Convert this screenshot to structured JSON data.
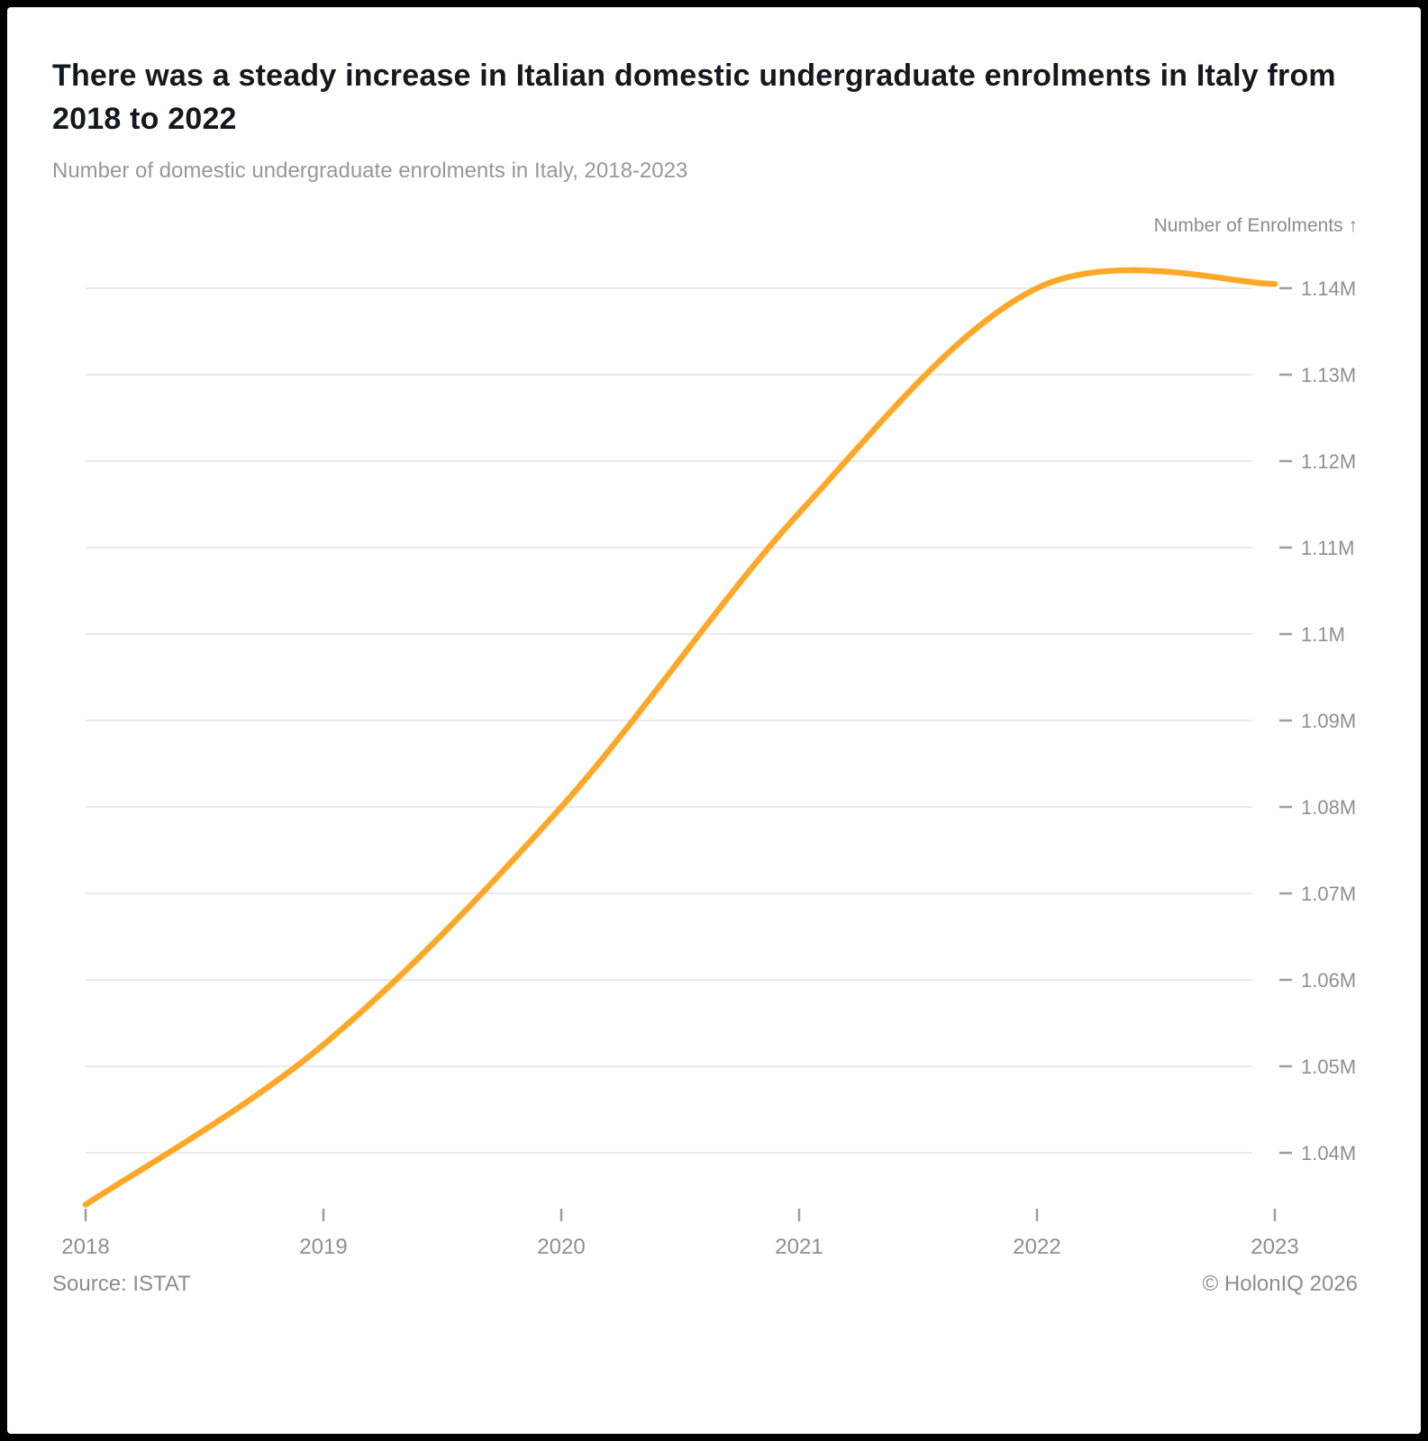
{
  "header": {
    "title": "There was a steady increase in Italian domestic undergraduate enrolments in Italy from 2018 to 2022",
    "subtitle": "Number of domestic undergraduate enrolments in Italy, 2018-2023"
  },
  "footer": {
    "source": "Source: ISTAT",
    "copyright": "© HolonIQ 2026"
  },
  "colors": {
    "line": "#FFA726",
    "gridline": "#eaeaea",
    "tick": "#9e9e9e",
    "tick_label": "#8d8f92",
    "title_text": "#15181e",
    "subtitle_text": "#96989b"
  },
  "chart_data": {
    "type": "line",
    "title": "Number of domestic undergraduate enrolments in Italy, 2018-2023",
    "x": [
      2018,
      2019,
      2020,
      2021,
      2022,
      2023
    ],
    "x_tick_labels": [
      "2018",
      "2019",
      "2020",
      "2021",
      "2022",
      "2023"
    ],
    "series": [
      {
        "name": "Domestic undergraduate enrolments",
        "values": [
          1034000,
          1052500,
          1080000,
          1114000,
          1140000,
          1140500
        ]
      }
    ],
    "ylabel": "Number of Enrolments ↑",
    "xlabel": "",
    "y_tick_values": [
      1040000,
      1050000,
      1060000,
      1070000,
      1080000,
      1090000,
      1100000,
      1110000,
      1120000,
      1130000,
      1140000
    ],
    "y_tick_labels": [
      "1.04M",
      "1.05M",
      "1.06M",
      "1.07M",
      "1.08M",
      "1.09M",
      "1.1M",
      "1.11M",
      "1.12M",
      "1.13M",
      "1.14M"
    ],
    "ylim": [
      1033000,
      1143000
    ],
    "grid": true,
    "legend_position": "none",
    "curve_style": "smooth",
    "annotations": []
  }
}
